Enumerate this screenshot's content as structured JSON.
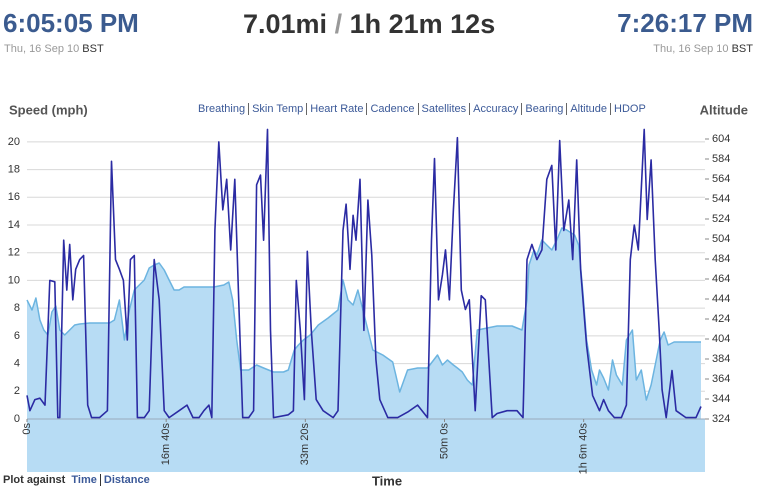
{
  "header": {
    "start_time": "6:05:05 PM",
    "start_date": "Thu, 16 Sep 10",
    "start_tz": "BST",
    "distance": "7.01mi",
    "separator": "/",
    "duration": "1h 21m 12s",
    "end_time": "7:26:17 PM",
    "end_date": "Thu, 16 Sep 10",
    "end_tz": "BST"
  },
  "metric_links": [
    "Breathing",
    "Skin Temp",
    "Heart Rate",
    "Cadence",
    "Satellites",
    "Accuracy",
    "Bearing",
    "Altitude",
    "HDOP"
  ],
  "chart_data": {
    "type": "line",
    "y_label": "Speed (mph)",
    "y2_label": "Altitude",
    "x_label": "Time",
    "xlim": [
      0,
      4872
    ],
    "xticks": [
      {
        "value": 0,
        "label": "0s"
      },
      {
        "value": 1000,
        "label": "16m 40s"
      },
      {
        "value": 2000,
        "label": "33m 20s"
      },
      {
        "value": 3000,
        "label": "50m 0s"
      },
      {
        "value": 4000,
        "label": "1h 6m 40s"
      }
    ],
    "ylim": [
      0,
      21
    ],
    "yticks": [
      0,
      2,
      4,
      6,
      8,
      10,
      12,
      14,
      16,
      18,
      20
    ],
    "y2lim": [
      324,
      615
    ],
    "y2ticks": [
      324,
      344,
      364,
      384,
      404,
      424,
      444,
      464,
      484,
      504,
      524,
      544,
      564,
      584,
      604
    ],
    "grid": true,
    "series": [
      {
        "axis": "y2",
        "area": true,
        "color": "#6cb4e0",
        "fill": "#b7dcf4",
        "x": [
          0,
          36,
          64,
          93,
          121,
          150,
          179,
          207,
          236,
          271,
          307,
          343,
          379,
          450,
          521,
          593,
          628,
          664,
          700,
          736,
          771,
          807,
          843,
          878,
          914,
          950,
          986,
          1021,
          1057,
          1093,
          1128,
          1164,
          1236,
          1307,
          1343,
          1414,
          1450,
          1478,
          1507,
          1535,
          1593,
          1650,
          1700,
          1771,
          1843,
          1878,
          1921,
          1950,
          1986,
          2035,
          2093,
          2164,
          2235,
          2271,
          2307,
          2343,
          2378,
          2450,
          2485,
          2557,
          2628,
          2650,
          2678,
          2735,
          2807,
          2878,
          2950,
          2985,
          3021,
          3064,
          3093,
          3128,
          3164,
          3200,
          3236,
          3307,
          3378,
          3485,
          3557,
          3593,
          3607,
          3643,
          3664,
          3700,
          3735,
          3771,
          3807,
          3843,
          3878,
          3935,
          3964,
          3993,
          4021,
          4057,
          4093,
          4114,
          4143,
          4178,
          4207,
          4235,
          4278,
          4307,
          4350,
          4378,
          4414,
          4450,
          4485,
          4521,
          4550,
          4578,
          4607,
          4650,
          4735,
          4843
        ],
        "values": [
          443,
          433,
          445,
          423,
          413,
          408,
          431,
          437,
          413,
          408,
          413,
          418,
          419,
          420,
          420,
          420,
          423,
          443,
          403,
          433,
          453,
          458,
          463,
          475,
          478,
          480,
          473,
          463,
          453,
          453,
          456,
          456,
          456,
          456,
          456,
          458,
          461,
          443,
          403,
          373,
          373,
          378,
          375,
          371,
          371,
          373,
          393,
          398,
          403,
          408,
          418,
          425,
          433,
          463,
          443,
          438,
          453,
          413,
          393,
          388,
          381,
          368,
          351,
          373,
          375,
          375,
          388,
          378,
          383,
          378,
          375,
          371,
          363,
          358,
          413,
          415,
          417,
          417,
          413,
          443,
          478,
          493,
          488,
          503,
          498,
          493,
          503,
          515,
          513,
          508,
          498,
          453,
          403,
          373,
          358,
          373,
          365,
          353,
          383,
          368,
          358,
          403,
          413,
          363,
          373,
          343,
          358,
          383,
          403,
          411,
          398,
          401,
          401,
          401
        ]
      },
      {
        "axis": "y",
        "color": "#2b2ba3",
        "x": [
          0,
          21,
          57,
          93,
          129,
          164,
          200,
          221,
          236,
          264,
          286,
          307,
          329,
          350,
          379,
          407,
          436,
          464,
          521,
          578,
          607,
          636,
          664,
          693,
          721,
          743,
          771,
          793,
          843,
          878,
          914,
          950,
          986,
          1021,
          1093,
          1150,
          1193,
          1236,
          1271,
          1307,
          1328,
          1350,
          1378,
          1407,
          1435,
          1464,
          1493,
          1521,
          1550,
          1593,
          1628,
          1650,
          1678,
          1700,
          1728,
          1750,
          1771,
          1878,
          1914,
          1935,
          1964,
          1993,
          2014,
          2043,
          2078,
          2128,
          2200,
          2235,
          2271,
          2293,
          2321,
          2343,
          2364,
          2393,
          2421,
          2450,
          2478,
          2507,
          2535,
          2593,
          2664,
          2735,
          2807,
          2878,
          2907,
          2928,
          2957,
          2985,
          3007,
          3035,
          3064,
          3093,
          3121,
          3150,
          3178,
          3221,
          3264,
          3293,
          3343,
          3378,
          3450,
          3521,
          3564,
          3593,
          3628,
          3664,
          3700,
          3735,
          3771,
          3800,
          3828,
          3857,
          3893,
          3921,
          3950,
          3978,
          4021,
          4064,
          4114,
          4143,
          4178,
          4221,
          4271,
          4307,
          4335,
          4364,
          4393,
          4435,
          4457,
          4485,
          4514,
          4543,
          4564,
          4593,
          4635,
          4664,
          4735,
          4807,
          4843
        ],
        "values": [
          1.7,
          0.6,
          1.4,
          1.5,
          1.0,
          10.0,
          9.9,
          0.1,
          0.1,
          12.9,
          9.3,
          12.6,
          8.6,
          10.8,
          11.5,
          11.8,
          1.0,
          0.1,
          0.1,
          0.6,
          18.6,
          11.5,
          10.8,
          10.0,
          5.7,
          11.5,
          11.8,
          0.1,
          0.1,
          0.6,
          11.5,
          8.6,
          0.6,
          0.1,
          0.6,
          1.0,
          0.1,
          0.1,
          0.6,
          1.0,
          0.1,
          13.6,
          20.0,
          15.1,
          17.3,
          12.2,
          17.3,
          8.6,
          0.1,
          0.1,
          0.6,
          16.9,
          17.6,
          12.9,
          20.9,
          6.4,
          0.1,
          0.3,
          0.6,
          10.0,
          6.4,
          1.4,
          12.1,
          6.4,
          1.4,
          0.6,
          0.1,
          0.6,
          13.6,
          15.5,
          10.8,
          14.7,
          12.9,
          17.3,
          6.4,
          15.8,
          11.8,
          4.3,
          1.4,
          0.1,
          0.1,
          0.5,
          1.0,
          0.1,
          12.9,
          18.8,
          8.6,
          10.4,
          12.2,
          8.6,
          15.1,
          20.3,
          9.3,
          7.9,
          8.6,
          0.6,
          8.9,
          8.6,
          0.1,
          0.4,
          0.6,
          0.6,
          0.1,
          11.5,
          12.6,
          11.5,
          12.2,
          17.3,
          18.3,
          12.2,
          20.1,
          13.6,
          15.8,
          11.5,
          18.7,
          10.8,
          5.3,
          1.7,
          0.6,
          1.4,
          0.6,
          0.1,
          0.1,
          1.0,
          11.5,
          14.0,
          12.2,
          20.9,
          14.4,
          18.7,
          11.5,
          6.4,
          2.1,
          0.1,
          3.5,
          0.6,
          0.1,
          0.1,
          0.9
        ]
      }
    ]
  },
  "footer": {
    "label": "Plot against",
    "options": [
      "Time",
      "Distance"
    ]
  }
}
